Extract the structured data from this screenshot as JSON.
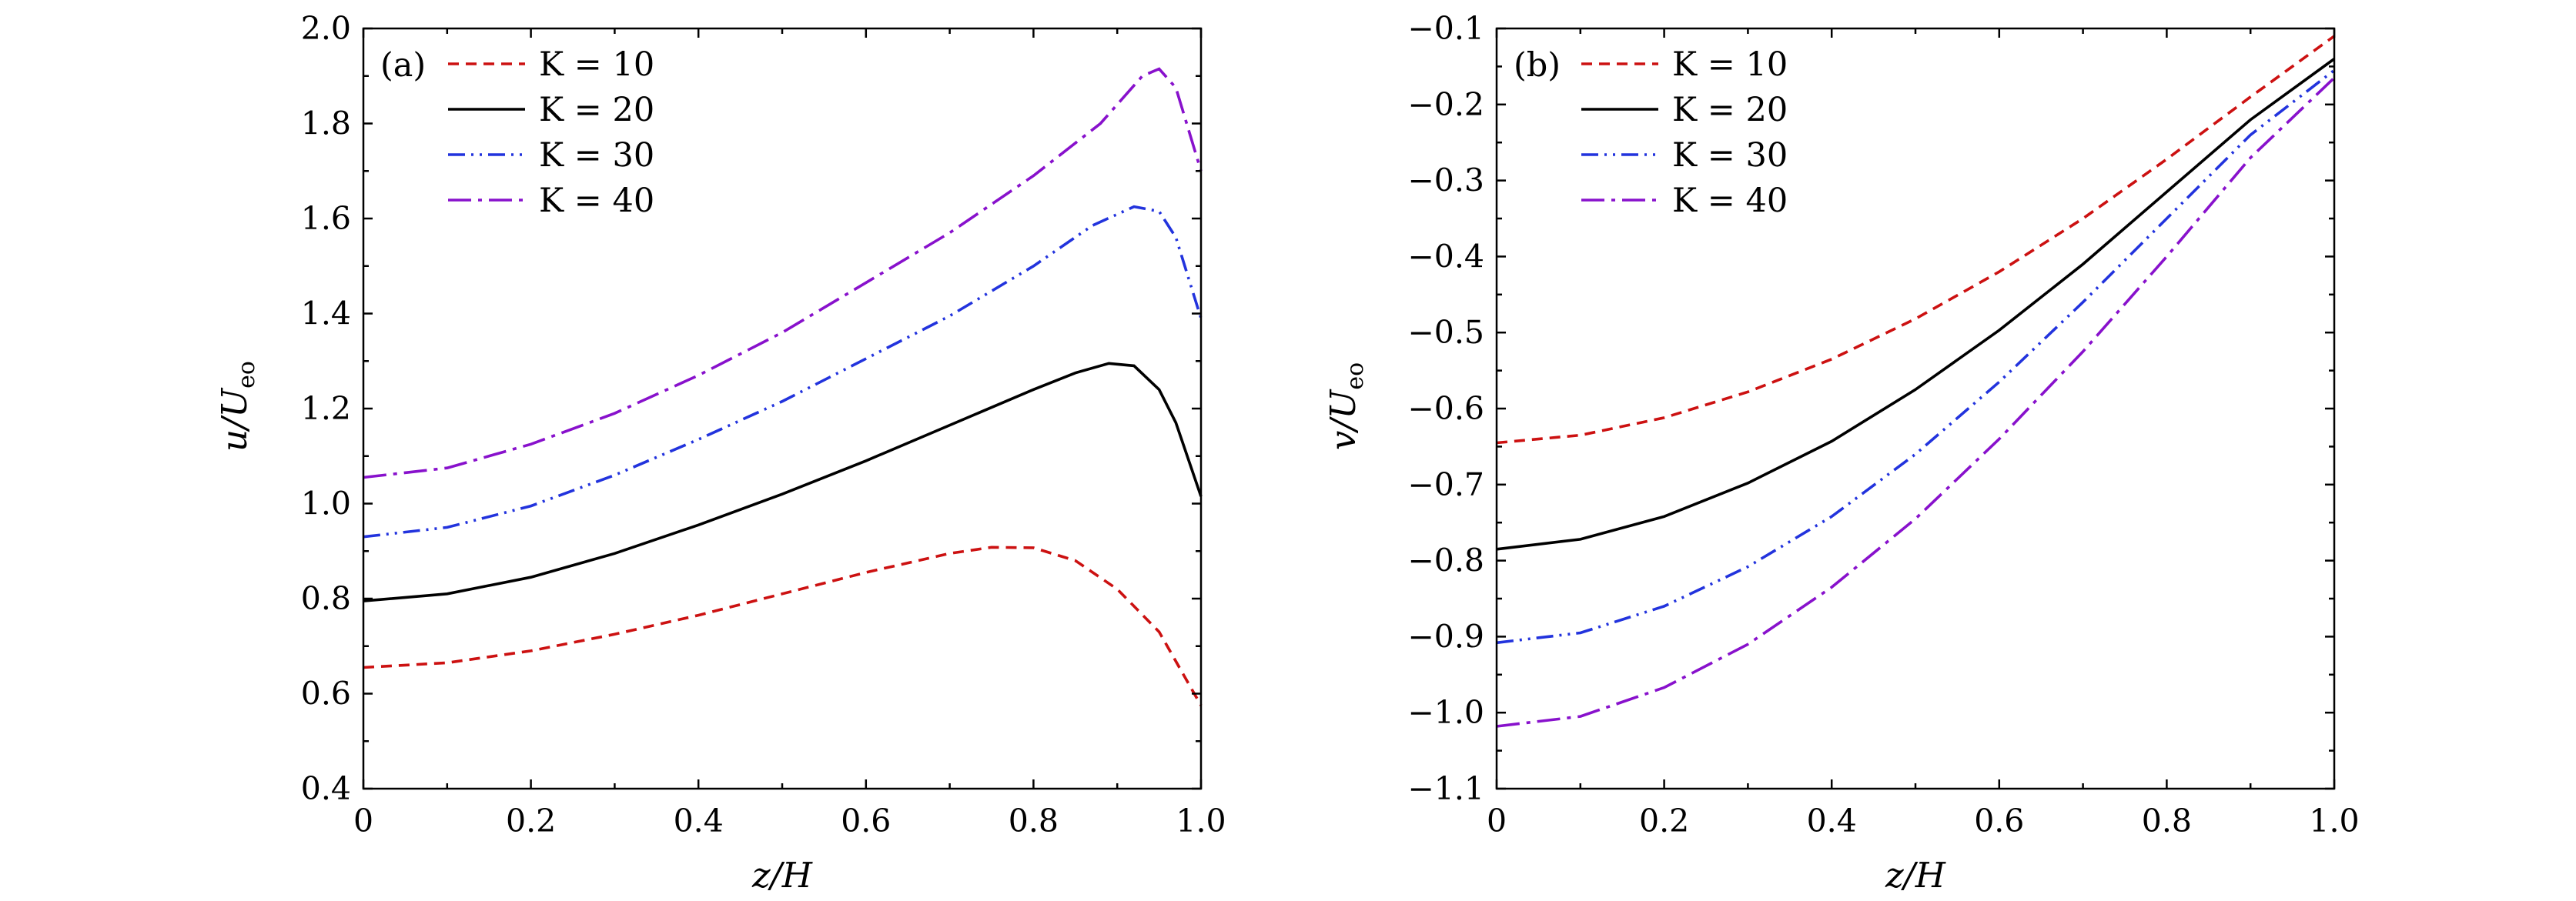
{
  "chart_data": [
    {
      "type": "line",
      "panel_label": "(a)",
      "xlabel": "z/H",
      "ylabel": "u/U",
      "ylabel_sub": "eo",
      "xlim": [
        0,
        1.0
      ],
      "ylim": [
        0.4,
        2.0
      ],
      "xticks": [
        0,
        0.2,
        0.4,
        0.6,
        0.8,
        1.0
      ],
      "xtick_labels": [
        "0",
        "0.2",
        "0.4",
        "0.6",
        "0.8",
        "1.0"
      ],
      "yticks": [
        0.4,
        0.6,
        0.8,
        1.0,
        1.2,
        1.4,
        1.6,
        1.8,
        2.0
      ],
      "ytick_labels": [
        "0.4",
        "0.6",
        "0.8",
        "1.0",
        "1.2",
        "1.4",
        "1.6",
        "1.8",
        "2.0"
      ],
      "legend_position": "top-left",
      "series": [
        {
          "name": "K = 10",
          "color": "#cc1111",
          "dash": "dashed",
          "x": [
            0,
            0.1,
            0.2,
            0.3,
            0.4,
            0.5,
            0.6,
            0.7,
            0.75,
            0.8,
            0.85,
            0.9,
            0.95,
            1.0
          ],
          "y": [
            0.655,
            0.665,
            0.69,
            0.725,
            0.765,
            0.81,
            0.855,
            0.895,
            0.908,
            0.907,
            0.88,
            0.82,
            0.73,
            0.575
          ]
        },
        {
          "name": "K = 20",
          "color": "#000000",
          "dash": "solid",
          "x": [
            0,
            0.1,
            0.2,
            0.3,
            0.4,
            0.5,
            0.6,
            0.7,
            0.8,
            0.85,
            0.89,
            0.92,
            0.95,
            0.97,
            1.0
          ],
          "y": [
            0.795,
            0.81,
            0.845,
            0.895,
            0.955,
            1.02,
            1.09,
            1.165,
            1.24,
            1.275,
            1.295,
            1.29,
            1.24,
            1.17,
            1.015
          ]
        },
        {
          "name": "K = 30",
          "color": "#2233dd",
          "dash": "dash-dot-dot",
          "x": [
            0,
            0.1,
            0.2,
            0.3,
            0.4,
            0.5,
            0.6,
            0.7,
            0.8,
            0.87,
            0.92,
            0.95,
            0.97,
            1.0
          ],
          "y": [
            0.93,
            0.95,
            0.995,
            1.06,
            1.135,
            1.215,
            1.305,
            1.395,
            1.5,
            1.585,
            1.625,
            1.615,
            1.56,
            1.39
          ]
        },
        {
          "name": "K = 40",
          "color": "#8811cc",
          "dash": "dash-dot",
          "x": [
            0,
            0.1,
            0.2,
            0.3,
            0.4,
            0.5,
            0.6,
            0.7,
            0.8,
            0.88,
            0.93,
            0.95,
            0.97,
            1.0
          ],
          "y": [
            1.055,
            1.075,
            1.125,
            1.19,
            1.27,
            1.36,
            1.465,
            1.57,
            1.69,
            1.8,
            1.9,
            1.915,
            1.875,
            1.7
          ]
        }
      ]
    },
    {
      "type": "line",
      "panel_label": "(b)",
      "xlabel": "z/H",
      "ylabel": "v/U",
      "ylabel_sub": "eo",
      "xlim": [
        0,
        1.0
      ],
      "ylim": [
        -1.1,
        -0.1
      ],
      "xticks": [
        0,
        0.2,
        0.4,
        0.6,
        0.8,
        1.0
      ],
      "xtick_labels": [
        "0",
        "0.2",
        "0.4",
        "0.6",
        "0.8",
        "1.0"
      ],
      "yticks": [
        -1.1,
        -1.0,
        -0.9,
        -0.8,
        -0.7,
        -0.6,
        -0.5,
        -0.4,
        -0.3,
        -0.2,
        -0.1
      ],
      "ytick_labels": [
        "−1.1",
        "−1.0",
        "−0.9",
        "−0.8",
        "−0.7",
        "−0.6",
        "−0.5",
        "−0.4",
        "−0.3",
        "−0.2",
        "−0.1"
      ],
      "legend_position": "top-left",
      "series": [
        {
          "name": "K = 10",
          "color": "#cc1111",
          "dash": "dashed",
          "x": [
            0,
            0.1,
            0.2,
            0.3,
            0.4,
            0.5,
            0.6,
            0.7,
            0.8,
            0.9,
            1.0
          ],
          "y": [
            -0.645,
            -0.635,
            -0.612,
            -0.578,
            -0.535,
            -0.482,
            -0.42,
            -0.35,
            -0.272,
            -0.19,
            -0.11
          ]
        },
        {
          "name": "K = 20",
          "color": "#000000",
          "dash": "solid",
          "x": [
            0,
            0.1,
            0.2,
            0.3,
            0.4,
            0.5,
            0.6,
            0.7,
            0.8,
            0.9,
            1.0
          ],
          "y": [
            -0.785,
            -0.772,
            -0.742,
            -0.698,
            -0.643,
            -0.575,
            -0.497,
            -0.41,
            -0.315,
            -0.22,
            -0.14
          ]
        },
        {
          "name": "K = 30",
          "color": "#2233dd",
          "dash": "dash-dot-dot",
          "x": [
            0,
            0.1,
            0.2,
            0.3,
            0.4,
            0.5,
            0.6,
            0.7,
            0.8,
            0.9,
            1.0
          ],
          "y": [
            -0.908,
            -0.895,
            -0.86,
            -0.808,
            -0.742,
            -0.66,
            -0.565,
            -0.46,
            -0.35,
            -0.24,
            -0.155
          ]
        },
        {
          "name": "K = 40",
          "color": "#8811cc",
          "dash": "dash-dot",
          "x": [
            0,
            0.1,
            0.2,
            0.3,
            0.4,
            0.5,
            0.6,
            0.7,
            0.8,
            0.9,
            1.0
          ],
          "y": [
            -1.018,
            -1.005,
            -0.967,
            -0.91,
            -0.835,
            -0.745,
            -0.64,
            -0.525,
            -0.4,
            -0.27,
            -0.165
          ]
        }
      ]
    }
  ]
}
